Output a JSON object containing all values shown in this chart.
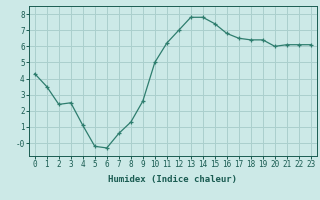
{
  "x": [
    0,
    1,
    2,
    3,
    4,
    5,
    6,
    7,
    8,
    9,
    10,
    11,
    12,
    13,
    14,
    15,
    16,
    17,
    18,
    19,
    20,
    21,
    22,
    23
  ],
  "y": [
    4.3,
    3.5,
    2.4,
    2.5,
    1.1,
    -0.2,
    -0.3,
    0.6,
    1.3,
    2.6,
    5.0,
    6.2,
    7.0,
    7.8,
    7.8,
    7.4,
    6.8,
    6.5,
    6.4,
    6.4,
    6.0,
    6.1,
    6.1,
    6.1
  ],
  "line_color": "#2e7d6e",
  "marker": "+",
  "marker_size": 3,
  "bg_color": "#cce9e7",
  "grid_color": "#aacfcd",
  "xlabel": "Humidex (Indice chaleur)",
  "xlabel_color": "#1a5c52",
  "tick_color": "#1a5c52",
  "spine_color": "#1a5c52",
  "ylim": [
    -0.8,
    8.5
  ],
  "xlim": [
    -0.5,
    23.5
  ],
  "yticks": [
    0,
    1,
    2,
    3,
    4,
    5,
    6,
    7,
    8
  ],
  "xticks": [
    0,
    1,
    2,
    3,
    4,
    5,
    6,
    7,
    8,
    9,
    10,
    11,
    12,
    13,
    14,
    15,
    16,
    17,
    18,
    19,
    20,
    21,
    22,
    23
  ],
  "axis_label_fontsize": 6.5,
  "tick_fontsize": 5.5
}
